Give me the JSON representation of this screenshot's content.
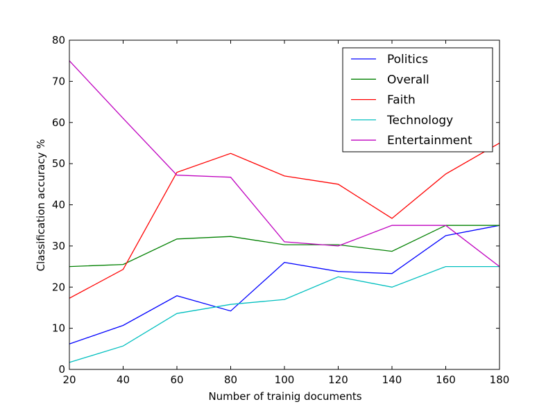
{
  "chart_data": {
    "type": "line",
    "title": "",
    "xlabel": "Number of trainig documents",
    "ylabel": "Classification accuracy %",
    "x": [
      20,
      40,
      60,
      80,
      100,
      120,
      140,
      160,
      180
    ],
    "xlim": [
      20,
      180
    ],
    "ylim": [
      0,
      80
    ],
    "xticks": [
      20,
      40,
      60,
      80,
      100,
      120,
      140,
      160,
      180
    ],
    "yticks": [
      0,
      10,
      20,
      30,
      40,
      50,
      60,
      70,
      80
    ],
    "grid": false,
    "legend_position": "top-right",
    "series": [
      {
        "name": "Politics",
        "color": "#0000ff",
        "values": [
          6.2,
          10.7,
          17.9,
          14.2,
          26.0,
          23.8,
          23.3,
          32.5,
          35.0
        ]
      },
      {
        "name": "Overall",
        "color": "#008000",
        "values": [
          25.0,
          25.5,
          31.7,
          32.3,
          30.3,
          30.3,
          28.7,
          35.0,
          35.0
        ]
      },
      {
        "name": "Faith",
        "color": "#ff0000",
        "values": [
          17.3,
          24.3,
          47.9,
          52.5,
          47.0,
          45.0,
          36.7,
          47.5,
          55.0
        ]
      },
      {
        "name": "Technology",
        "color": "#00bfbf",
        "values": [
          1.7,
          5.7,
          13.6,
          15.8,
          17.0,
          22.5,
          20.0,
          25.0,
          25.0
        ]
      },
      {
        "name": "Entertainment",
        "color": "#bf00bf",
        "values": [
          75.0,
          61.0,
          47.2,
          46.7,
          31.0,
          30.0,
          35.0,
          35.0,
          25.0
        ]
      }
    ]
  }
}
